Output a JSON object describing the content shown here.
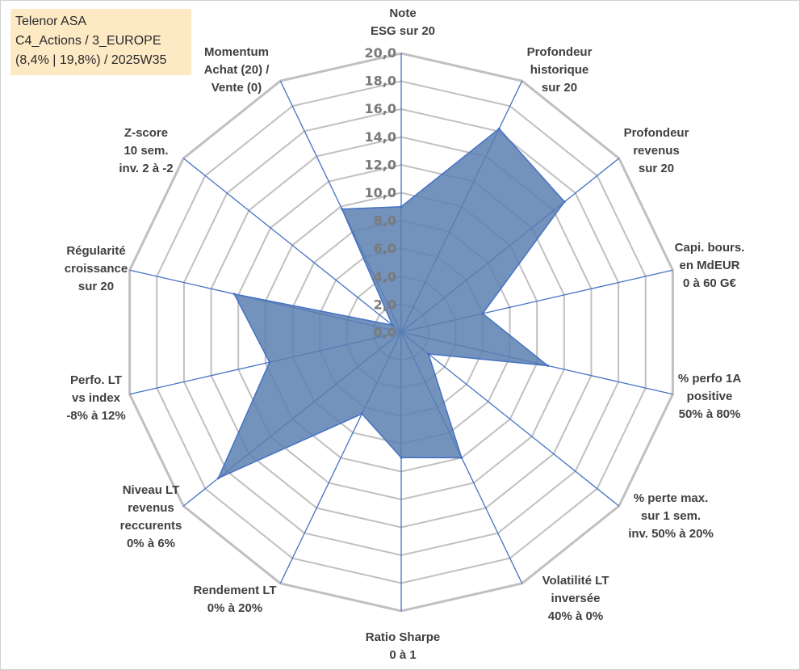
{
  "info": {
    "line1": "Telenor ASA",
    "line2": "C4_Actions / 3_EUROPE",
    "line3": "(8,4% | 19,8%) / 2025W35"
  },
  "colors": {
    "grid": "#c0c0c0",
    "spoke": "#4472c4",
    "fill": "#5b7fb0",
    "stroke": "#4472c4",
    "infoBox": "#fde9c4"
  },
  "chart_data": {
    "type": "radar",
    "rmin": 0,
    "rmax": 20,
    "tick_step": 2,
    "tick_labels": [
      "0,0",
      "2,0",
      "4,0",
      "6,0",
      "8,0",
      "10,0",
      "12,0",
      "14,0",
      "16,0",
      "18,0",
      "20,0"
    ],
    "axes": [
      [
        "Note",
        "ESG sur 20"
      ],
      [
        "Profondeur",
        "historique",
        "sur 20"
      ],
      [
        "Profondeur",
        "revenus",
        "sur 20"
      ],
      [
        "Capi. bours.",
        "en MdEUR",
        "0 à 60 G€"
      ],
      [
        "% perfo 1A",
        "positive",
        "50% à 80%"
      ],
      [
        "% perte max.",
        "sur 1 sem.",
        "inv. 50% à 20%"
      ],
      [
        "Volatilité LT",
        "inversée",
        "40% à 0%"
      ],
      [
        "Ratio Sharpe",
        "0 à 1"
      ],
      [
        "Rendement LT",
        "0% à 20%"
      ],
      [
        "Niveau LT",
        "revenus",
        "reccurents",
        "0% à 6%"
      ],
      [
        "Perfo. LT",
        "vs index",
        "-8% à 12%"
      ],
      [
        "Régularité",
        "croissance",
        "sur 20"
      ],
      [
        "Z-score",
        "10 sem.",
        "inv. 2 à -2"
      ],
      [
        "Momentum",
        "Achat (20) /",
        "Vente (0)"
      ]
    ],
    "values": [
      9.0,
      16.2,
      15.0,
      6.0,
      10.8,
      2.5,
      10.0,
      9.0,
      6.5,
      16.8,
      9.7,
      12.3,
      0.8,
      9.8
    ],
    "grid": true
  }
}
